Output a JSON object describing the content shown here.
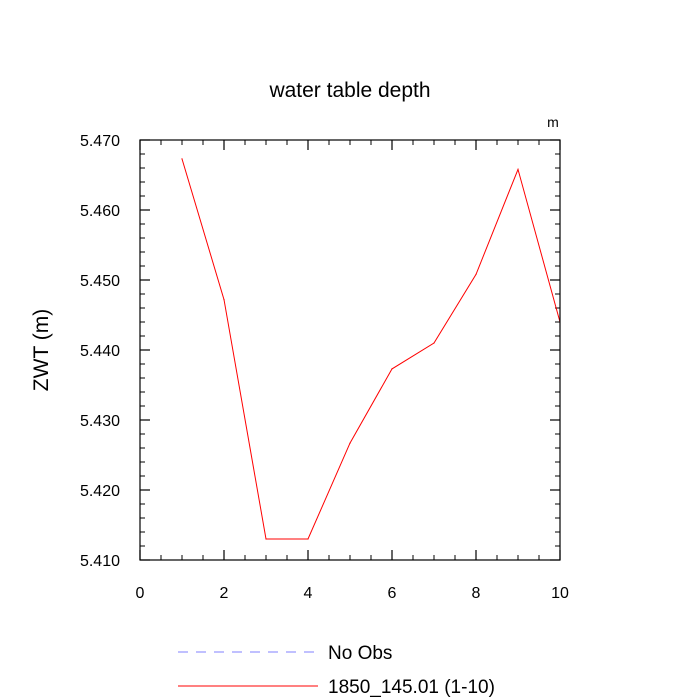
{
  "chart_data": {
    "type": "line",
    "title": "water table depth",
    "ylabel": "ZWT  (m)",
    "xlabel": "",
    "units_label": "m",
    "xlim": [
      0,
      10
    ],
    "ylim": [
      5.41,
      5.47
    ],
    "x_ticks": [
      "0",
      "2",
      "4",
      "6",
      "8",
      "10"
    ],
    "y_ticks": [
      "5.410",
      "5.420",
      "5.430",
      "5.440",
      "5.450",
      "5.460",
      "5.470"
    ],
    "series": [
      {
        "name": "1850_145.01 (1-10)",
        "color": "#ff0000",
        "style": "solid",
        "x": [
          1,
          2,
          3,
          4,
          5,
          6,
          7,
          8,
          9,
          10
        ],
        "y": [
          5.4673,
          5.4472,
          5.413,
          5.413,
          5.4267,
          5.4373,
          5.441,
          5.4508,
          5.4658,
          5.444
        ]
      }
    ],
    "legend": [
      {
        "label": "No Obs",
        "color": "#8080ff",
        "style": "dashed"
      },
      {
        "label": "1850_145.01 (1-10)",
        "color": "#ff0000",
        "style": "solid"
      }
    ],
    "legend_position": "bottom"
  }
}
